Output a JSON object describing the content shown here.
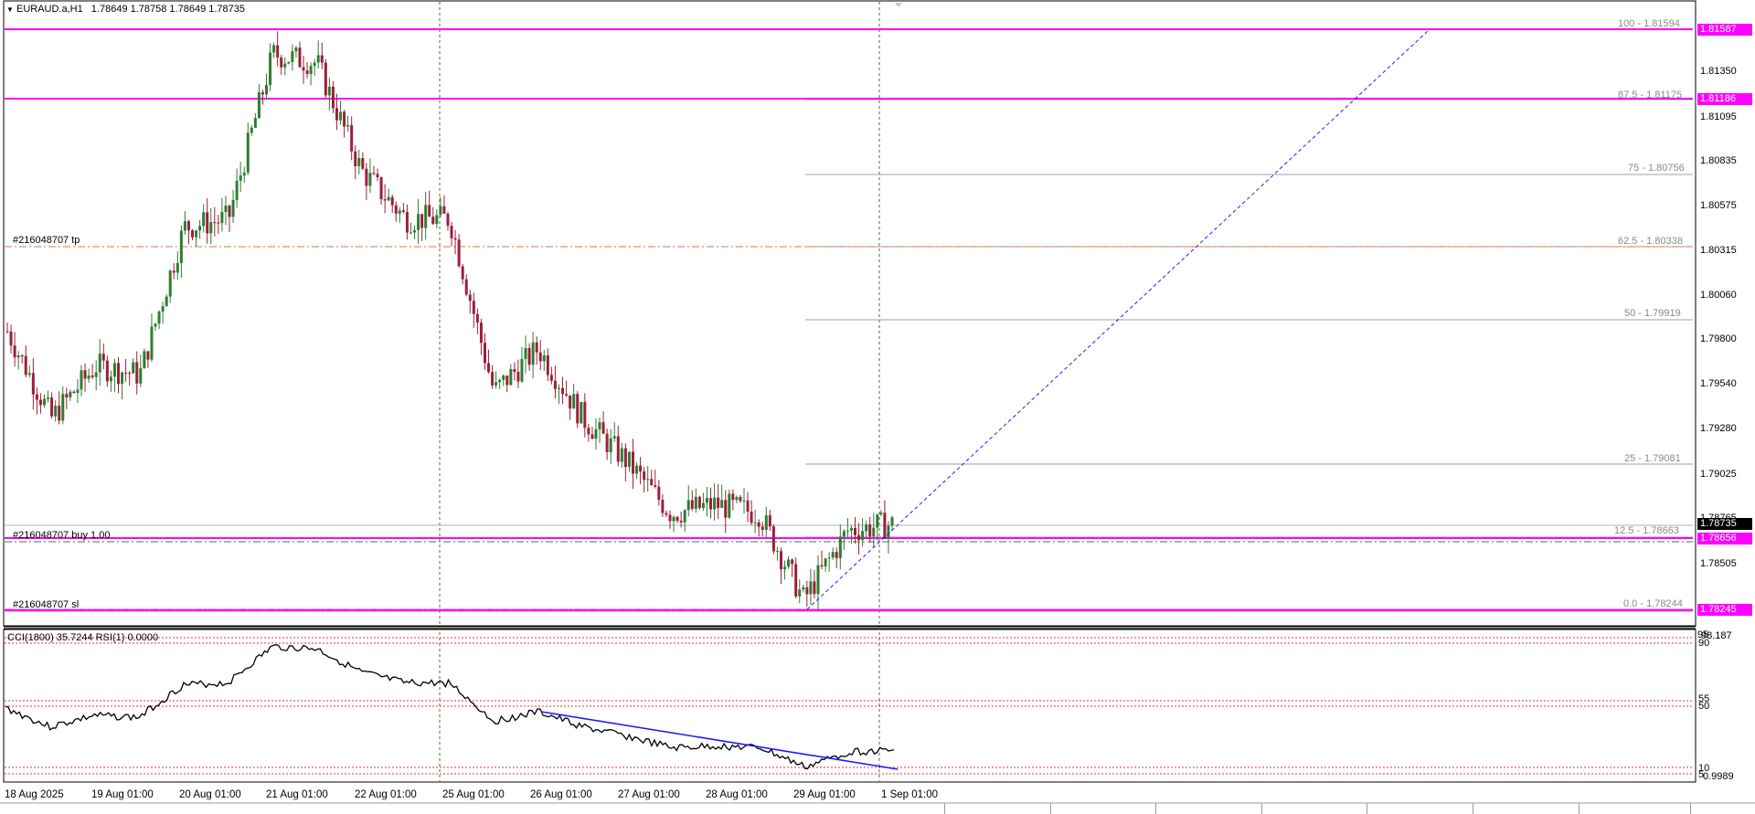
{
  "header": {
    "symbol": "EURAUD.a,H1",
    "ohlc": "1.78649 1.78758 1.78649 1.78735"
  },
  "price_axis": {
    "ticks": [
      "1.81350",
      "1.81095",
      "1.80835",
      "1.80575",
      "1.80315",
      "1.80060",
      "1.79800",
      "1.79540",
      "1.79280",
      "1.79025",
      "1.78765",
      "1.78505"
    ],
    "tags": {
      "hline_top": "1.81587",
      "hline_second": "1.81186",
      "current": "1.78735",
      "order": "1.78656",
      "bottom": "1.78245"
    }
  },
  "fibonacci": {
    "levels": [
      {
        "label": "100 - 1.81594"
      },
      {
        "label": "87.5 - 1.81175"
      },
      {
        "label": "75 - 1.80756"
      },
      {
        "label": "62.5 - 1.80338"
      },
      {
        "label": "50 - 1.79919"
      },
      {
        "label": "25 - 1.79081"
      },
      {
        "label": "12.5 - 1.78663"
      },
      {
        "label": "0.0 - 1.78244"
      }
    ]
  },
  "orders": {
    "tp_label": "#216048707 tp",
    "buy_label": "#216048707 buy 1.00",
    "sl_label": "#216048707 sl"
  },
  "indicator": {
    "title": "CCI(1800) 35.7244  RSI(1) 0.0000",
    "ticks": [
      "98.187",
      "95",
      "90",
      "55",
      "50",
      "10",
      "5",
      "0.9989"
    ]
  },
  "time_axis": {
    "labels": [
      "18 Aug 2025",
      "19 Aug 01:00",
      "20 Aug 01:00",
      "21 Aug 01:00",
      "22 Aug 01:00",
      "25 Aug 01:00",
      "26 Aug 01:00",
      "27 Aug 01:00",
      "28 Aug 01:00",
      "29 Aug 01:00",
      "1 Sep 01:00"
    ]
  },
  "colors": {
    "bull_candle": "#2e7d32",
    "bear_candle": "#9c1f3a",
    "magenta": "#ff00ff",
    "trendline": "#2020ff",
    "tp_sl": "#e0704a",
    "fib": "#a0a0a0"
  },
  "chart_data": {
    "type": "candlestick",
    "symbol": "EURAUD",
    "timeframe": "H1",
    "x_start": "18 Aug 2025",
    "x_end": "1 Sep 01:00",
    "ylim": [
      1.7824,
      1.816
    ],
    "approx_close_path": [
      {
        "x": "18 Aug 2025",
        "y": 1.7985
      },
      {
        "x": "18 Aug 12:00",
        "y": 1.7935
      },
      {
        "x": "19 Aug 01:00",
        "y": 1.7965
      },
      {
        "x": "19 Aug 12:00",
        "y": 1.796
      },
      {
        "x": "20 Aug 01:00",
        "y": 1.8045
      },
      {
        "x": "20 Aug 12:00",
        "y": 1.805
      },
      {
        "x": "21 Aug 01:00",
        "y": 1.8145
      },
      {
        "x": "21 Aug 12:00",
        "y": 1.814
      },
      {
        "x": "22 Aug 01:00",
        "y": 1.8078
      },
      {
        "x": "22 Aug 12:00",
        "y": 1.805
      },
      {
        "x": "25 Aug 01:00",
        "y": 1.805
      },
      {
        "x": "25 Aug 12:00",
        "y": 1.795
      },
      {
        "x": "26 Aug 01:00",
        "y": 1.7975
      },
      {
        "x": "26 Aug 12:00",
        "y": 1.7935
      },
      {
        "x": "27 Aug 01:00",
        "y": 1.791
      },
      {
        "x": "27 Aug 12:00",
        "y": 1.788
      },
      {
        "x": "28 Aug 01:00",
        "y": 1.7885
      },
      {
        "x": "28 Aug 12:00",
        "y": 1.788
      },
      {
        "x": "29 Aug 01:00",
        "y": 1.783
      },
      {
        "x": "29 Aug 12:00",
        "y": 1.787
      },
      {
        "x": "1 Sep 01:00",
        "y": 1.78735
      }
    ],
    "horizontal_lines": [
      1.81587,
      1.81186,
      1.78656,
      1.78245
    ],
    "fib_levels": [
      1.81594,
      1.81175,
      1.80756,
      1.80338,
      1.79919,
      1.79081,
      1.78663,
      1.78244
    ]
  }
}
